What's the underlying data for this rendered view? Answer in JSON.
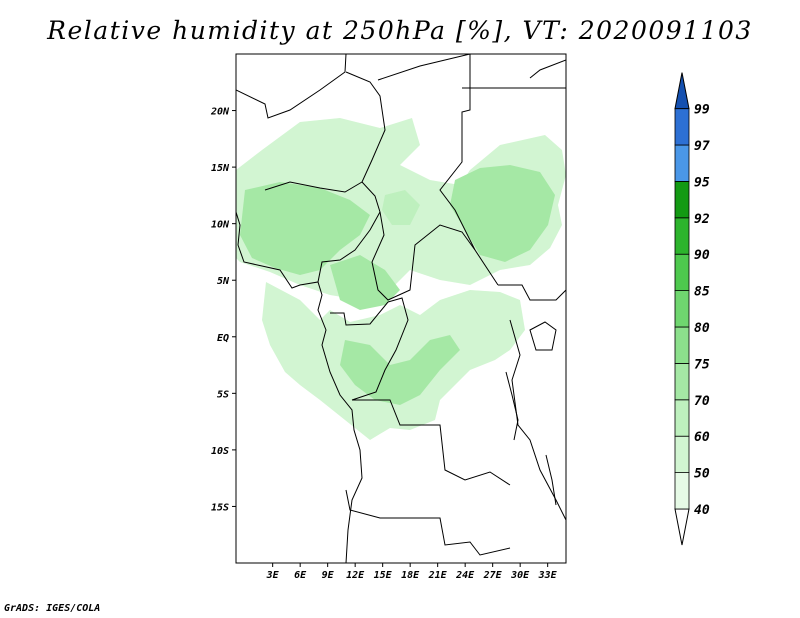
{
  "title": "Relative humidity at 250hPa [%], VT: 2020091103",
  "credit": "GrADS: IGES/COLA",
  "map": {
    "lon_range": [
      -1,
      35
    ],
    "lat_range": [
      -20,
      25
    ],
    "x_ticks": [
      "3E",
      "6E",
      "9E",
      "12E",
      "15E",
      "18E",
      "21E",
      "24E",
      "27E",
      "30E",
      "33E"
    ],
    "y_ticks": [
      "20N",
      "15N",
      "10N",
      "5N",
      "EQ",
      "5S",
      "10S",
      "15S"
    ]
  },
  "colorbar": {
    "labels": [
      "40",
      "50",
      "60",
      "70",
      "75",
      "80",
      "85",
      "90",
      "92",
      "95",
      "97",
      "99"
    ],
    "colors": [
      "#ffffff",
      "#e6fae6",
      "#d2f5d2",
      "#bef0be",
      "#a5e8a5",
      "#8ce08c",
      "#6fd66f",
      "#4ec94e",
      "#2db42d",
      "#139a13",
      "#4a97e8",
      "#2d70d4",
      "#1450b0"
    ]
  }
}
